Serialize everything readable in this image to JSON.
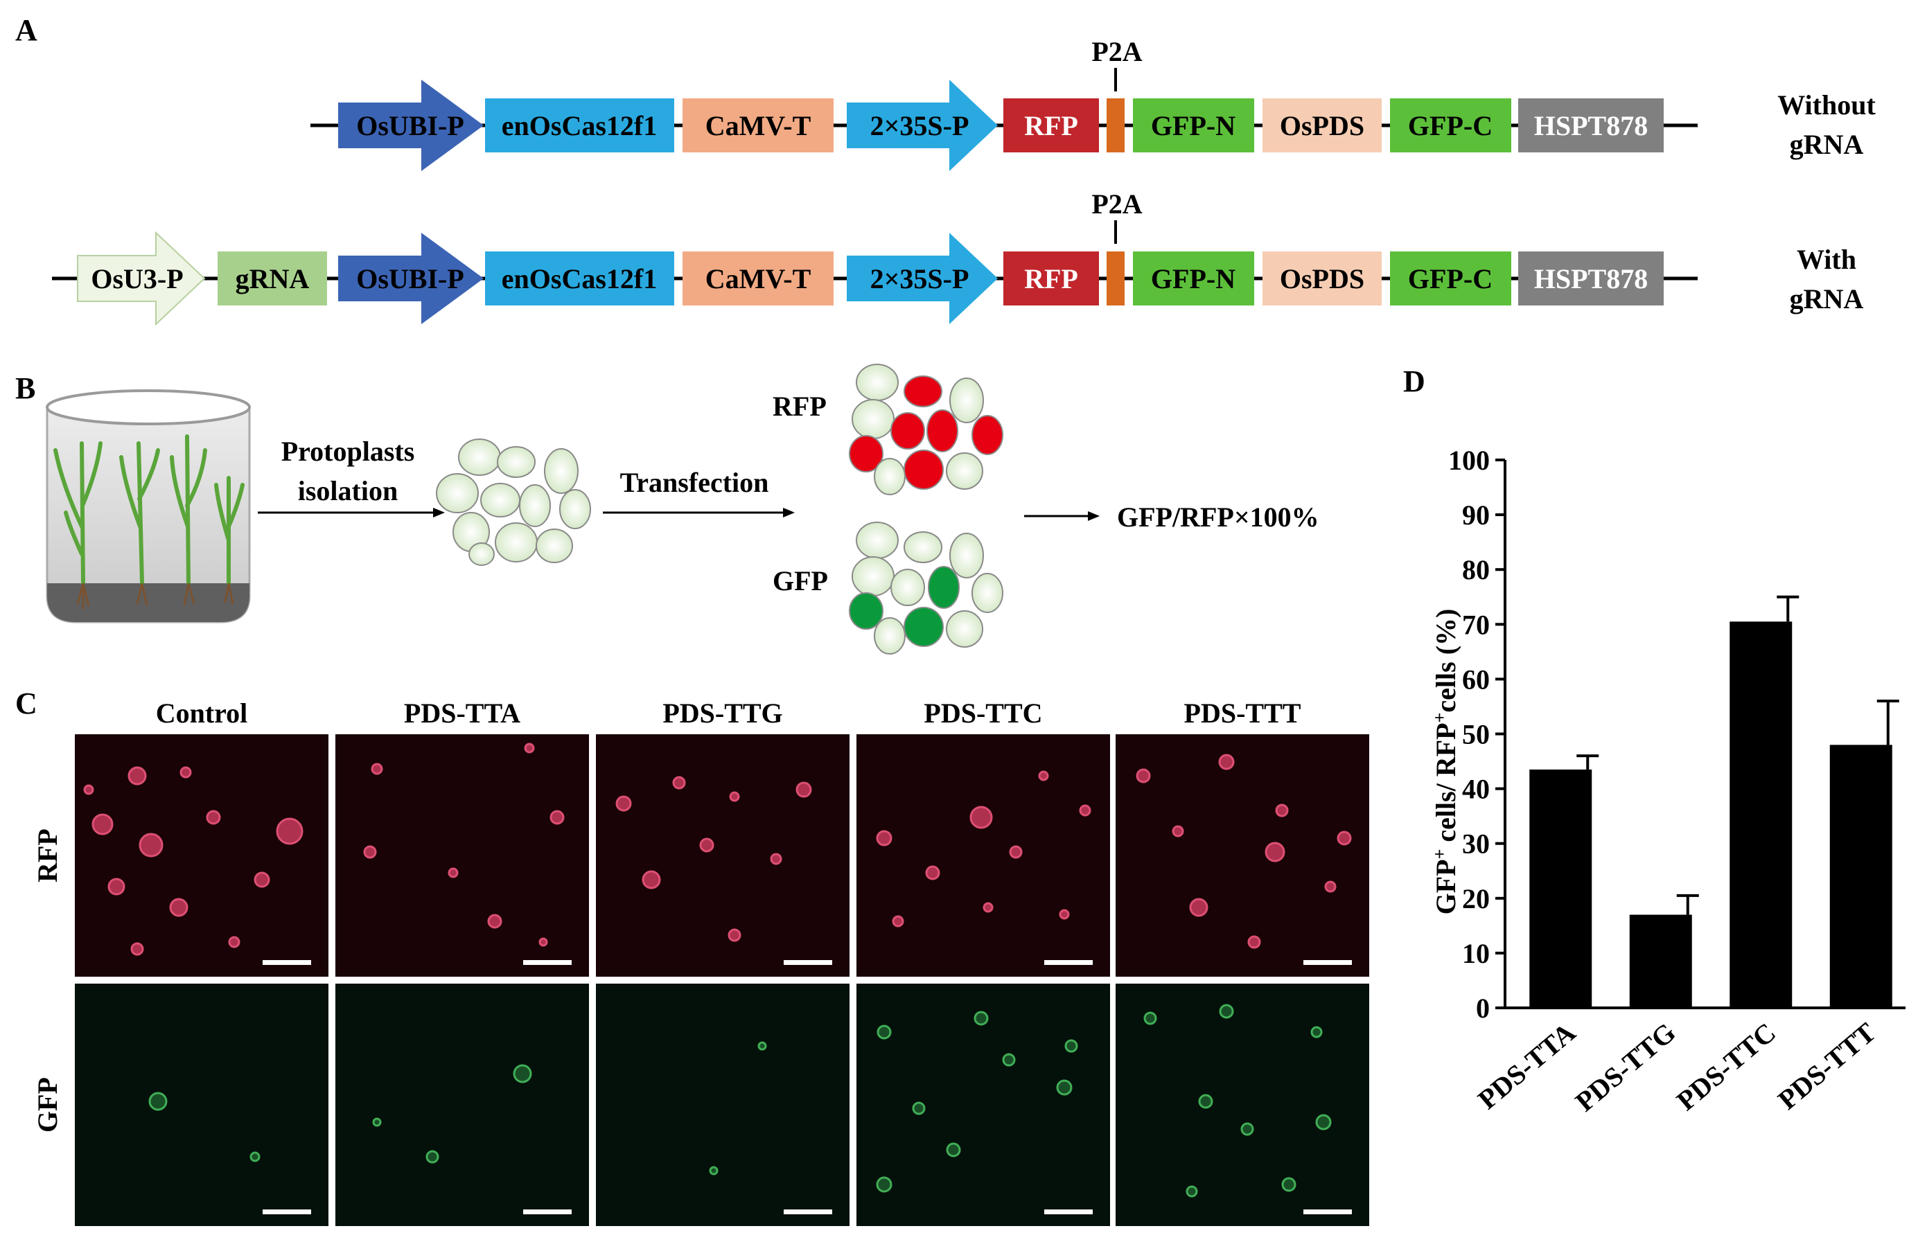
{
  "panels": {
    "a": "A",
    "b": "B",
    "c": "C",
    "d": "D"
  },
  "construct1": {
    "label_line1": "Without",
    "label_line2": "gRNA",
    "p2a": "P2A",
    "elements": [
      "OsUBI-P",
      "enOsCas12f1",
      "CaMV-T",
      "2×35S-P",
      "RFP",
      "GFP-N",
      "OsPDS",
      "GFP-C",
      "HSPT878"
    ]
  },
  "construct2": {
    "label_line1": "With",
    "label_line2": "gRNA",
    "p2a": "P2A",
    "elements": [
      "OsU3-P",
      "gRNA",
      "OsUBI-P",
      "enOsCas12f1",
      "CaMV-T",
      "2×35S-P",
      "RFP",
      "GFP-N",
      "OsPDS",
      "GFP-C",
      "HSPT878"
    ]
  },
  "workflow": {
    "step1_line1": "Protoplasts",
    "step1_line2": "isolation",
    "step2": "Transfection",
    "rfp_label": "RFP",
    "gfp_label": "GFP",
    "formula": "GFP/RFP×100%"
  },
  "microscopy": {
    "columns": [
      "Control",
      "PDS-TTA",
      "PDS-TTG",
      "PDS-TTC",
      "PDS-TTT"
    ],
    "rows": [
      "RFP",
      "GFP"
    ]
  },
  "colors": {
    "osubi": "#3c64b4",
    "cas": "#29a9e0",
    "camv": "#f2aa84",
    "s35": "#29a9e0",
    "rfp": "#c1262c",
    "p2a": "#d8691e",
    "gfp": "#5cbf3a",
    "ospds": "#f6cdb3",
    "hspt": "#808080",
    "osu3": "#eef5e4",
    "grna": "#a8d08d"
  },
  "chart_data": {
    "type": "bar",
    "categories": [
      "PDS-TTA",
      "PDS-TTG",
      "PDS-TTC",
      "PDS-TTT"
    ],
    "values": [
      43.5,
      17,
      70.5,
      48
    ],
    "errors": [
      2.5,
      3.5,
      4.5,
      8
    ],
    "ylabel_main": "GFP",
    "ylabel_sup1": "+",
    "ylabel_mid": " cells/ RFP",
    "ylabel_sup2": "+",
    "ylabel_end": "cells (%)",
    "ylim": [
      0,
      100
    ],
    "yticks": [
      0,
      10,
      20,
      30,
      40,
      50,
      60,
      70,
      80,
      90,
      100
    ]
  }
}
